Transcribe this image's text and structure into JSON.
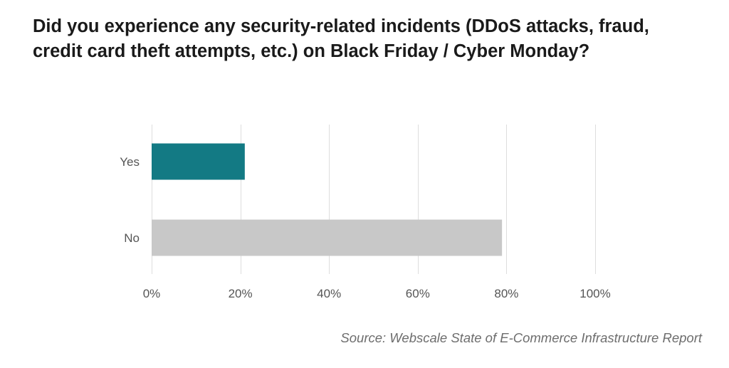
{
  "chart_data": {
    "type": "bar",
    "orientation": "horizontal",
    "title": "Did you experience any security-related incidents (DDoS attacks, fraud, credit card theft attempts, etc.) on Black Friday / Cyber Monday?",
    "categories": [
      "Yes",
      "No"
    ],
    "values": [
      21,
      79
    ],
    "unit": "%",
    "xlim": [
      0,
      100
    ],
    "xticks": [
      0,
      20,
      40,
      60,
      80,
      100
    ],
    "tick_labels": [
      "0%",
      "20%",
      "40%",
      "60%",
      "80%",
      "100%"
    ],
    "grid": true,
    "legend": "none",
    "colors": [
      "#137a84",
      "#c8c8c8"
    ],
    "grid_color": "#dddddd",
    "source": "Source: Webscale State of E-Commerce Infrastructure Report"
  }
}
